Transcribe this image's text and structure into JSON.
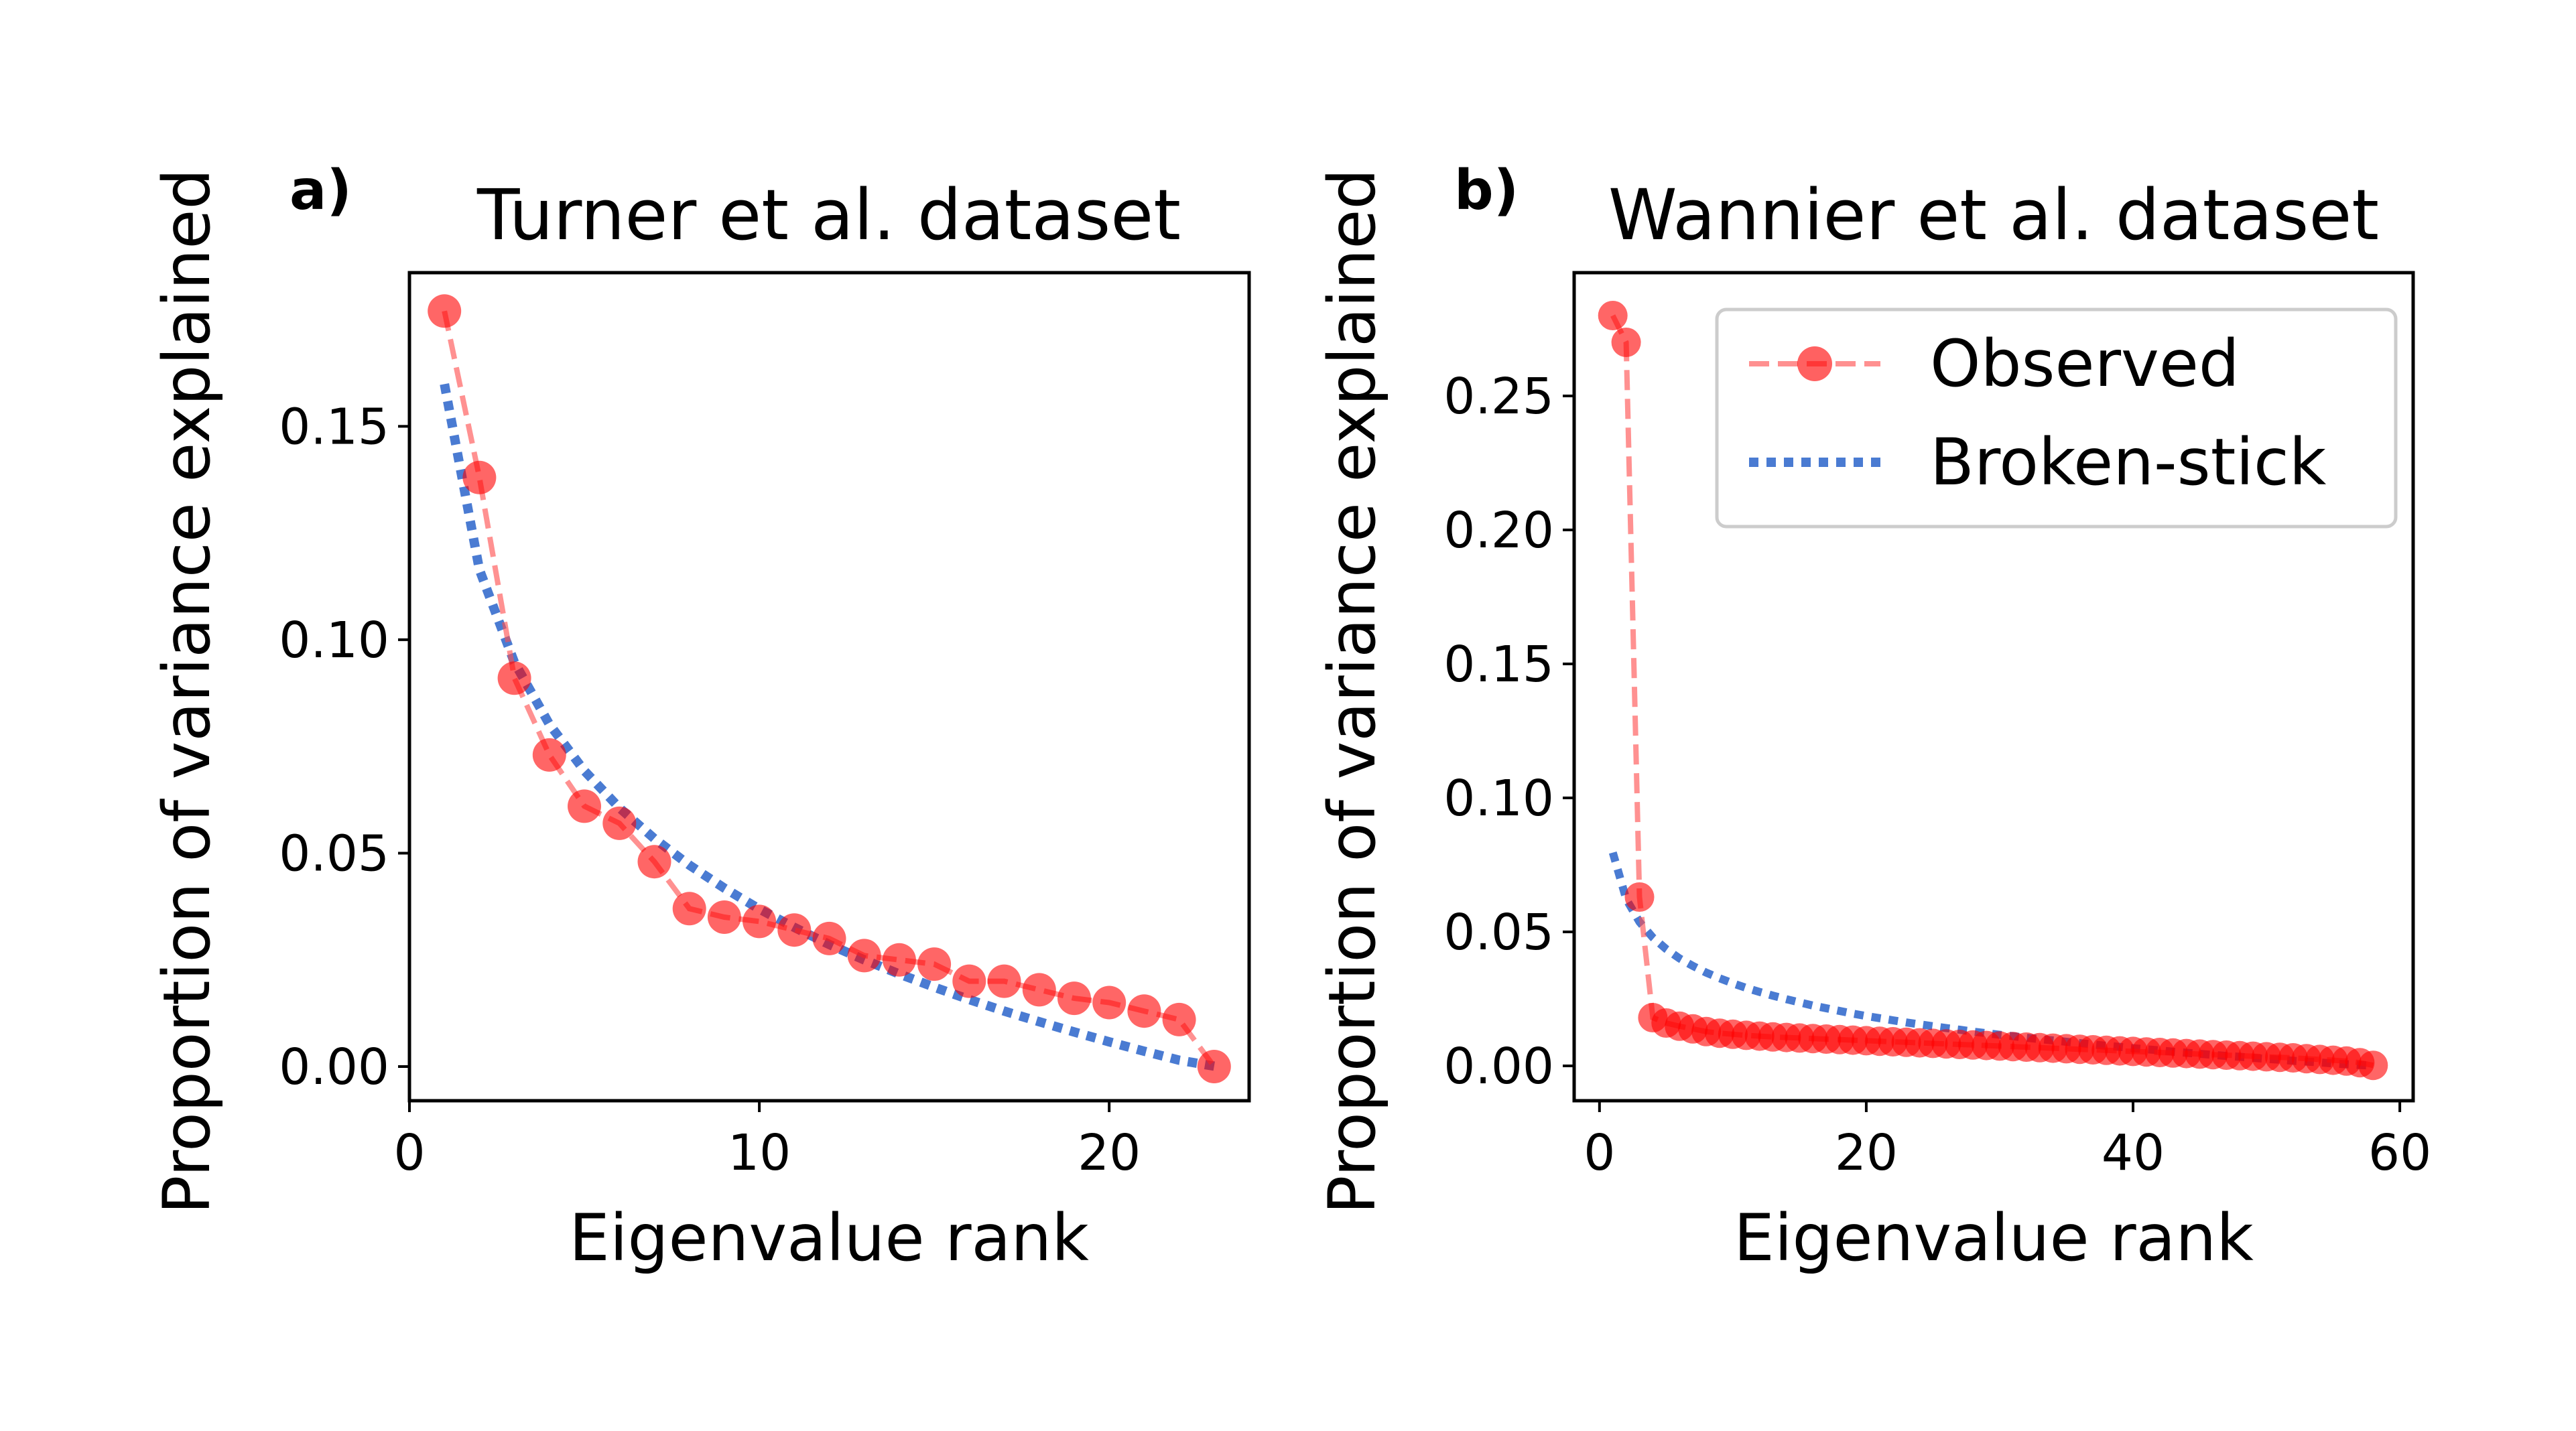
{
  "colors": {
    "observed": "#ff0000",
    "observed_line": "#ff4d4d",
    "broken_stick": "#4a7bd2",
    "axes": "#000000",
    "legend_border": "#cccccc"
  },
  "chart_data": [
    {
      "type": "line",
      "panel_label": "a)",
      "title": "Turner et al. dataset",
      "xlabel": "Eigenvalue rank",
      "ylabel": "Proportion of variance explained",
      "xlim": [
        0,
        24
      ],
      "ylim": [
        -0.008,
        0.186
      ],
      "xticks": [
        "0",
        "10",
        "20"
      ],
      "yticks": [
        "0.00",
        "0.05",
        "0.10",
        "0.15"
      ],
      "grid": false,
      "legend": null,
      "series": [
        {
          "name": "Observed",
          "style": "dashed-with-markers",
          "x": [
            1,
            2,
            3,
            4,
            5,
            6,
            7,
            8,
            9,
            10,
            11,
            12,
            13,
            14,
            15,
            16,
            17,
            18,
            19,
            20,
            21,
            22,
            23
          ],
          "y": [
            0.177,
            0.138,
            0.091,
            0.073,
            0.061,
            0.057,
            0.048,
            0.037,
            0.035,
            0.034,
            0.032,
            0.03,
            0.026,
            0.025,
            0.024,
            0.02,
            0.02,
            0.018,
            0.016,
            0.015,
            0.013,
            0.011,
            0.0
          ]
        },
        {
          "name": "Broken-stick",
          "style": "dotted",
          "x": [
            1,
            2,
            3,
            4,
            5,
            6,
            7,
            8,
            9,
            10,
            11,
            12,
            13,
            14,
            15,
            16,
            17,
            18,
            19,
            20,
            21,
            22,
            23
          ],
          "y": [
            0.1599,
            0.1164,
            0.0947,
            0.0802,
            0.0693,
            0.0606,
            0.0534,
            0.0472,
            0.0418,
            0.0369,
            0.0326,
            0.0286,
            0.025,
            0.0217,
            0.0186,
            0.0157,
            0.013,
            0.0105,
            0.0081,
            0.0058,
            0.0036,
            0.0015,
            0.0001
          ]
        }
      ]
    },
    {
      "type": "line",
      "panel_label": "b)",
      "title": "Wannier et al. dataset",
      "xlabel": "Eigenvalue rank",
      "ylabel": "Proportion of variance explained",
      "xlim": [
        -1.9,
        61.0
      ],
      "ylim": [
        -0.013,
        0.296
      ],
      "xticks": [
        "0",
        "20",
        "40",
        "60"
      ],
      "yticks": [
        "0.00",
        "0.05",
        "0.10",
        "0.15",
        "0.20",
        "0.25"
      ],
      "grid": false,
      "legend": {
        "position": "top-right",
        "entries": [
          "Observed",
          "Broken-stick"
        ]
      },
      "series": [
        {
          "name": "Observed",
          "style": "dashed-with-markers",
          "x": [
            1,
            2,
            3,
            4,
            5,
            6,
            7,
            8,
            9,
            10,
            11,
            12,
            13,
            14,
            15,
            16,
            17,
            18,
            19,
            20,
            21,
            22,
            23,
            24,
            25,
            26,
            27,
            28,
            29,
            30,
            31,
            32,
            33,
            34,
            35,
            36,
            37,
            38,
            39,
            40,
            41,
            42,
            43,
            44,
            45,
            46,
            47,
            48,
            49,
            50,
            51,
            52,
            53,
            54,
            55,
            56,
            57,
            58
          ],
          "y": [
            0.28,
            0.27,
            0.063,
            0.018,
            0.016,
            0.0148,
            0.0138,
            0.0128,
            0.0122,
            0.0118,
            0.0114,
            0.0111,
            0.0108,
            0.0106,
            0.0104,
            0.0102,
            0.01,
            0.0098,
            0.0096,
            0.0094,
            0.0092,
            0.009,
            0.0088,
            0.0086,
            0.0084,
            0.0082,
            0.008,
            0.0078,
            0.0076,
            0.0074,
            0.0072,
            0.007,
            0.0068,
            0.0066,
            0.0064,
            0.0062,
            0.006,
            0.0058,
            0.0056,
            0.0054,
            0.0052,
            0.005,
            0.0048,
            0.0046,
            0.0044,
            0.0042,
            0.004,
            0.0038,
            0.0036,
            0.0034,
            0.0032,
            0.003,
            0.0027,
            0.0024,
            0.0021,
            0.0018,
            0.0012,
            0.0002
          ]
        },
        {
          "name": "Broken-stick",
          "style": "dotted",
          "x": [
            1,
            2,
            3,
            4,
            5,
            6,
            7,
            8,
            9,
            10,
            11,
            12,
            13,
            14,
            15,
            16,
            17,
            18,
            19,
            20,
            21,
            22,
            23,
            24,
            25,
            26,
            27,
            28,
            29,
            30,
            31,
            32,
            33,
            34,
            35,
            36,
            37,
            38,
            39,
            40,
            41,
            42,
            43,
            44,
            45,
            46,
            47,
            48,
            49,
            50,
            51,
            52,
            53,
            54,
            55,
            56,
            57,
            58
          ],
          "y": [
            0.0796,
            0.0623,
            0.0537,
            0.0479,
            0.0436,
            0.0401,
            0.0373,
            0.0348,
            0.0327,
            0.0308,
            0.0291,
            0.0276,
            0.0262,
            0.0249,
            0.0237,
            0.0225,
            0.0215,
            0.0205,
            0.0195,
            0.0186,
            0.0178,
            0.017,
            0.0162,
            0.0155,
            0.0148,
            0.0141,
            0.0135,
            0.0128,
            0.0122,
            0.0116,
            0.0111,
            0.0105,
            0.01,
            0.0095,
            0.009,
            0.0085,
            0.008,
            0.0075,
            0.0071,
            0.0066,
            0.0062,
            0.0058,
            0.0053,
            0.0049,
            0.0045,
            0.0041,
            0.0037,
            0.0034,
            0.003,
            0.0026,
            0.0023,
            0.0019,
            0.0016,
            0.0013,
            0.0009,
            0.0006,
            0.0003,
            0.0001
          ]
        }
      ]
    }
  ]
}
